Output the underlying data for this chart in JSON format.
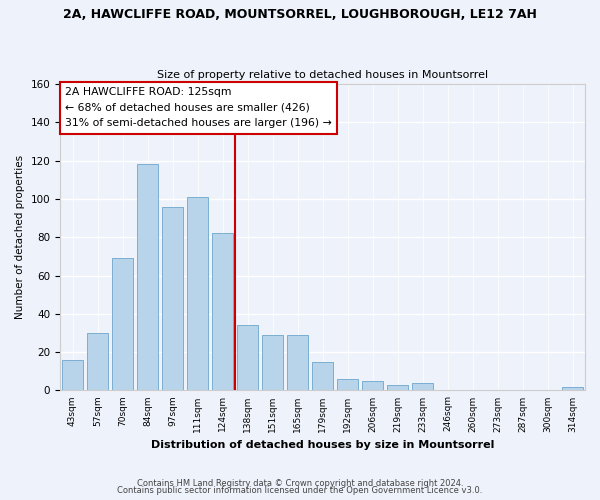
{
  "title": "2A, HAWCLIFFE ROAD, MOUNTSORREL, LOUGHBOROUGH, LE12 7AH",
  "subtitle": "Size of property relative to detached houses in Mountsorrel",
  "xlabel": "Distribution of detached houses by size in Mountsorrel",
  "ylabel": "Number of detached properties",
  "bar_color": "#b8d4ea",
  "bar_edge_color": "#7aaed0",
  "categories": [
    "43sqm",
    "57sqm",
    "70sqm",
    "84sqm",
    "97sqm",
    "111sqm",
    "124sqm",
    "138sqm",
    "151sqm",
    "165sqm",
    "179sqm",
    "192sqm",
    "206sqm",
    "219sqm",
    "233sqm",
    "246sqm",
    "260sqm",
    "273sqm",
    "287sqm",
    "300sqm",
    "314sqm"
  ],
  "values": [
    16,
    30,
    69,
    118,
    96,
    101,
    82,
    34,
    29,
    29,
    15,
    6,
    5,
    3,
    4,
    0,
    0,
    0,
    0,
    0,
    2
  ],
  "vline_index": 6.5,
  "vline_color": "#cc0000",
  "annotation_title": "2A HAWCLIFFE ROAD: 125sqm",
  "annotation_line1": "← 68% of detached houses are smaller (426)",
  "annotation_line2": "31% of semi-detached houses are larger (196) →",
  "annotation_box_color": "#ffffff",
  "annotation_box_edge": "#cc0000",
  "footer1": "Contains HM Land Registry data © Crown copyright and database right 2024.",
  "footer2": "Contains public sector information licensed under the Open Government Licence v3.0.",
  "ylim": [
    0,
    160
  ],
  "background_color": "#eef2fa"
}
